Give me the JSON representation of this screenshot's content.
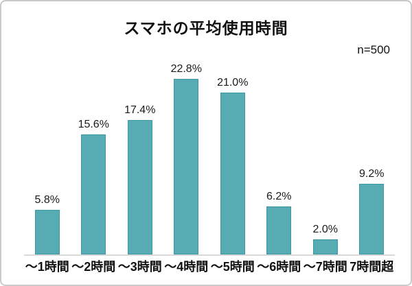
{
  "header": {
    "title": "スマホの平均使用時間",
    "sample_label": "n=500"
  },
  "chart_data": {
    "type": "bar",
    "title": "スマホの平均使用時間",
    "subtitle": "n=500",
    "categories": [
      "～1時間",
      "～2時間",
      "～3時間",
      "～4時間",
      "～5時間",
      "～6時間",
      "～7時間",
      "7時間超"
    ],
    "values": [
      5.8,
      15.6,
      17.4,
      22.8,
      21.0,
      6.2,
      2.0,
      9.2
    ],
    "value_labels": [
      "5.8%",
      "15.6%",
      "17.4%",
      "22.8%",
      "21.0%",
      "6.2%",
      "2.0%",
      "9.2%"
    ],
    "xlabel": "",
    "ylabel": "",
    "ylim": [
      0,
      25
    ],
    "grid": false,
    "legend": false,
    "colors": {
      "bar_fill": "#57acb4",
      "bar_border": "#3e98a2",
      "axis_line": "#d9d9d9",
      "text": "#111111",
      "frame_border": "#c9c9c9",
      "background": "#ffffff"
    }
  }
}
